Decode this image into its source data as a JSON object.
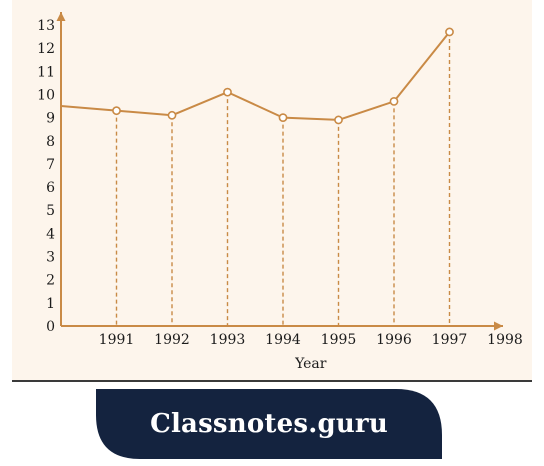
{
  "chart_data": {
    "type": "line",
    "xlabel": "Year",
    "ylabel": "",
    "x_ticks": [
      "1991",
      "1992",
      "1993",
      "1994",
      "1995",
      "1996",
      "1997",
      "1998"
    ],
    "y_ticks": [
      "0",
      "1",
      "2",
      "3",
      "4",
      "5",
      "6",
      "7",
      "8",
      "9",
      "10",
      "11",
      "12",
      "13"
    ],
    "series": [
      {
        "x": [
          1990,
          1991,
          1992,
          1993,
          1994,
          1995,
          1996,
          1997
        ],
        "y": [
          9.5,
          9.3,
          9.1,
          10.1,
          9.0,
          8.9,
          9.7,
          12.7
        ]
      }
    ],
    "marked_x": [
      1991,
      1992,
      1993,
      1994,
      1995,
      1996,
      1997
    ],
    "xlim": [
      1990,
      1998
    ],
    "ylim": [
      0,
      13
    ],
    "grid": false,
    "line_color": "#c98a46",
    "drop_line_style": "dashed"
  },
  "banner": {
    "text": "Classnotes.guru",
    "color": "#14233f"
  }
}
